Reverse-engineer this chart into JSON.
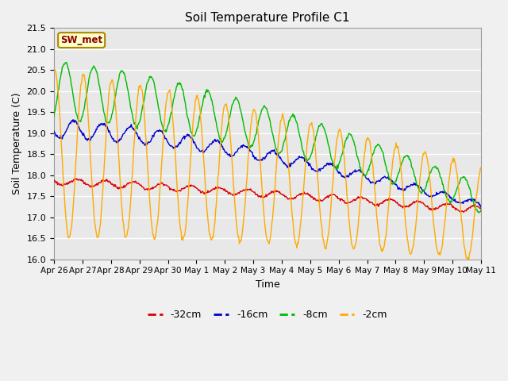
{
  "title": "Soil Temperature Profile C1",
  "xlabel": "Time",
  "ylabel": "Soil Temperature (C)",
  "ylim": [
    16.0,
    21.5
  ],
  "yticks": [
    16.0,
    16.5,
    17.0,
    17.5,
    18.0,
    18.5,
    19.0,
    19.5,
    20.0,
    20.5,
    21.0,
    21.5
  ],
  "x_tick_labels": [
    "Apr 26",
    "Apr 27",
    "Apr 28",
    "Apr 29",
    "Apr 30",
    "May 1",
    "May 2",
    "May 3",
    "May 4",
    "May 5",
    "May 6",
    "May 7",
    "May 8",
    "May 9",
    "May 10",
    "May 11"
  ],
  "colors": {
    "-32cm": "#dd0000",
    "-16cm": "#0000cc",
    "-8cm": "#00bb00",
    "-2cm": "#ffaa00"
  },
  "annotation_box": {
    "text": "SW_met",
    "facecolor": "#ffffcc",
    "edgecolor": "#aa8800",
    "textcolor": "#880000"
  },
  "fig_facecolor": "#f0f0f0",
  "plot_facecolor": "#e8e8e8",
  "grid_color": "#ffffff"
}
